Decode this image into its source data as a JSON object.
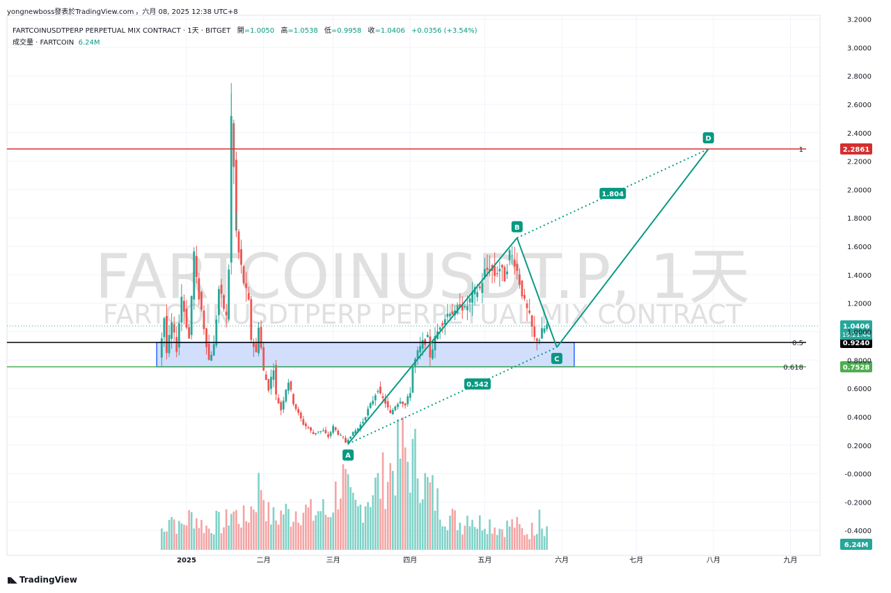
{
  "publisher_line": {
    "user": "yongnewboss發表於TradingView.com",
    "date": "，六月 08, 2025 12:38 UTC+8"
  },
  "legend": {
    "symbol": "FARTCOINUSDTPERP PERPETUAL MIX CONTRACT · 1天 · BITGET",
    "open_label": "開",
    "open": "=1.0050",
    "high_label": "高",
    "high": "=1.0538",
    "low_label": "低",
    "low": "=0.9958",
    "close_label": "收",
    "close": "=1.0406",
    "change": "+0.0356 (+3.54%)",
    "volume_label": "成交量 · FARTCOIN",
    "volume": "6.24M"
  },
  "watermark": {
    "big": "FARTCOINUSDT.P, 1天",
    "small": "FARTCOINUSDTPERP PERPETUAL MIX CONTRACT"
  },
  "brand": "TradingView",
  "colors": {
    "up": "#26a69a",
    "down": "#ef5350",
    "vol_up": "#7fd1c7",
    "vol_down": "#f4a3a3",
    "pattern": "#089981",
    "box_fill": "#c9d8fb",
    "box_stroke": "#2962ff",
    "red_line": "#d32f2f",
    "green_line": "#4caf50"
  },
  "chart_data": {
    "type": "candlestick",
    "y_ticks": [
      "3.2000",
      "3.0000",
      "2.8000",
      "2.6000",
      "2.4000",
      "2.2000",
      "2.0000",
      "1.8000",
      "1.6000",
      "1.4000",
      "1.2000",
      "1.0000",
      "0.8000",
      "0.6000",
      "0.4000",
      "0.2000",
      "-0.0000",
      "-0.2000",
      "-0.4000"
    ],
    "y_tick_values": [
      3.2,
      3.0,
      2.8,
      2.6,
      2.4,
      2.2,
      2.0,
      1.8,
      1.6,
      1.4,
      1.2,
      1.0,
      0.8,
      0.6,
      0.4,
      0.2,
      0.0,
      -0.2,
      -0.4
    ],
    "ylim": [
      -0.48,
      3.22
    ],
    "x_ticks": [
      {
        "label": "2025",
        "day": 0,
        "bold": true
      },
      {
        "label": "二月",
        "day": 31
      },
      {
        "label": "三月",
        "day": 59
      },
      {
        "label": "四月",
        "day": 90
      },
      {
        "label": "五月",
        "day": 120
      },
      {
        "label": "六月",
        "day": 151
      },
      {
        "label": "七月",
        "day": 181
      },
      {
        "label": "八月",
        "day": 212
      },
      {
        "label": "九月",
        "day": 243
      }
    ],
    "price_points": [
      [
        -11,
        0.82
      ],
      [
        -9,
        1.1
      ],
      [
        -8,
        0.85
      ],
      [
        -6,
        1.05
      ],
      [
        -4,
        0.88
      ],
      [
        -2,
        1.25
      ],
      [
        1,
        0.95
      ],
      [
        3,
        1.55
      ],
      [
        4,
        1.35
      ],
      [
        6,
        1.15
      ],
      [
        9,
        0.8
      ],
      [
        11,
        0.9
      ],
      [
        13,
        1.3
      ],
      [
        16,
        1.1
      ],
      [
        17,
        1.45
      ],
      [
        18,
        2.5
      ],
      [
        19,
        2.15
      ],
      [
        20,
        1.7
      ],
      [
        21,
        1.55
      ],
      [
        23,
        1.35
      ],
      [
        25,
        1.2
      ],
      [
        26,
        0.95
      ],
      [
        28,
        0.85
      ],
      [
        29,
        1.05
      ],
      [
        31,
        0.72
      ],
      [
        33,
        0.6
      ],
      [
        35,
        0.75
      ],
      [
        36,
        0.55
      ],
      [
        38,
        0.45
      ],
      [
        40,
        0.6
      ],
      [
        41,
        0.65
      ],
      [
        43,
        0.5
      ],
      [
        45,
        0.42
      ],
      [
        47,
        0.35
      ],
      [
        49,
        0.32
      ],
      [
        51,
        0.28
      ],
      [
        53,
        0.3
      ],
      [
        55,
        0.3
      ],
      [
        57,
        0.26
      ],
      [
        59,
        0.33
      ],
      [
        61,
        0.28
      ],
      [
        63,
        0.25
      ],
      [
        64,
        0.22
      ],
      [
        66,
        0.27
      ],
      [
        69,
        0.32
      ],
      [
        71,
        0.37
      ],
      [
        73,
        0.45
      ],
      [
        75,
        0.52
      ],
      [
        77,
        0.6
      ],
      [
        78,
        0.55
      ],
      [
        80,
        0.5
      ],
      [
        82,
        0.42
      ],
      [
        84,
        0.48
      ],
      [
        86,
        0.52
      ],
      [
        88,
        0.48
      ],
      [
        90,
        0.58
      ],
      [
        91,
        0.75
      ],
      [
        93,
        0.85
      ],
      [
        95,
        0.92
      ],
      [
        97,
        0.95
      ],
      [
        98,
        0.83
      ],
      [
        100,
        0.95
      ],
      [
        102,
        1.05
      ],
      [
        104,
        1.1
      ],
      [
        106,
        1.15
      ],
      [
        108,
        1.12
      ],
      [
        110,
        1.2
      ],
      [
        112,
        1.15
      ],
      [
        114,
        1.22
      ],
      [
        116,
        1.28
      ],
      [
        118,
        1.3
      ],
      [
        120,
        1.42
      ],
      [
        122,
        1.45
      ],
      [
        124,
        1.4
      ],
      [
        126,
        1.45
      ],
      [
        128,
        1.38
      ],
      [
        130,
        1.55
      ],
      [
        132,
        1.5
      ],
      [
        134,
        1.35
      ],
      [
        136,
        1.2
      ],
      [
        138,
        1.1
      ],
      [
        140,
        0.95
      ],
      [
        142,
        0.95
      ],
      [
        143,
        1.0
      ],
      [
        145,
        1.04
      ]
    ],
    "volume_points": [
      [
        -9,
        0.4
      ],
      [
        -7,
        0.9
      ],
      [
        -3,
        0.5
      ],
      [
        0,
        0.7
      ],
      [
        3,
        0.8
      ],
      [
        6,
        0.6
      ],
      [
        9,
        0.5
      ],
      [
        12,
        0.65
      ],
      [
        15,
        0.55
      ],
      [
        18,
        0.9
      ],
      [
        21,
        0.75
      ],
      [
        24,
        0.7
      ],
      [
        27,
        1.1
      ],
      [
        30,
        1.6
      ],
      [
        33,
        0.8
      ],
      [
        36,
        0.7
      ],
      [
        39,
        0.9
      ],
      [
        42,
        0.8
      ],
      [
        45,
        1.0
      ],
      [
        48,
        0.9
      ],
      [
        51,
        0.8
      ],
      [
        54,
        0.95
      ],
      [
        57,
        0.8
      ],
      [
        60,
        1.3
      ],
      [
        63,
        1.6
      ],
      [
        66,
        1.05
      ],
      [
        69,
        0.9
      ],
      [
        72,
        1.2
      ],
      [
        75,
        1.4
      ],
      [
        78,
        1.5
      ],
      [
        81,
        1.8
      ],
      [
        84,
        2.0
      ],
      [
        87,
        2.3
      ],
      [
        90,
        2.0
      ],
      [
        93,
        2.1
      ],
      [
        96,
        1.5
      ],
      [
        99,
        1.3
      ],
      [
        102,
        1.0
      ],
      [
        105,
        0.8
      ],
      [
        108,
        0.7
      ],
      [
        111,
        0.6
      ],
      [
        114,
        0.9
      ],
      [
        117,
        0.6
      ],
      [
        120,
        0.7
      ],
      [
        123,
        0.6
      ],
      [
        126,
        0.5
      ],
      [
        129,
        0.55
      ],
      [
        132,
        0.6
      ],
      [
        135,
        0.45
      ],
      [
        138,
        0.4
      ],
      [
        141,
        0.6
      ],
      [
        142,
        1.3
      ],
      [
        143,
        0.6
      ],
      [
        145,
        0.5
      ]
    ],
    "vol_max_label": "6.24M",
    "last_price": {
      "value": 1.0406,
      "label": "1.0406",
      "countdown": "19:21:44"
    },
    "horizontal_lines": [
      {
        "value": 2.2861,
        "label": "2.2861",
        "fib": "1",
        "color": "#d32f2f"
      },
      {
        "value": 0.924,
        "label": "0.9240",
        "fib": "0.5",
        "color": "#000000"
      },
      {
        "value": 0.7528,
        "label": "0.7528",
        "fib": "0.618",
        "color": "#4caf50"
      }
    ],
    "zone": {
      "from_day": -12,
      "to_day": 156,
      "top": 0.924,
      "bottom": 0.7528
    },
    "pattern": {
      "points": [
        {
          "label": "A",
          "day": 65,
          "price": 0.21
        },
        {
          "label": "B",
          "day": 133,
          "price": 1.66
        },
        {
          "label": "C",
          "day": 149,
          "price": 0.89
        },
        {
          "label": "D",
          "day": 210,
          "price": 2.2861
        }
      ],
      "ratios": [
        {
          "label": "0.542",
          "between": [
            "A",
            "C"
          ],
          "t": 0.62
        },
        {
          "label": "1.804",
          "between": [
            "B",
            "D"
          ],
          "t": 0.5
        }
      ]
    }
  }
}
